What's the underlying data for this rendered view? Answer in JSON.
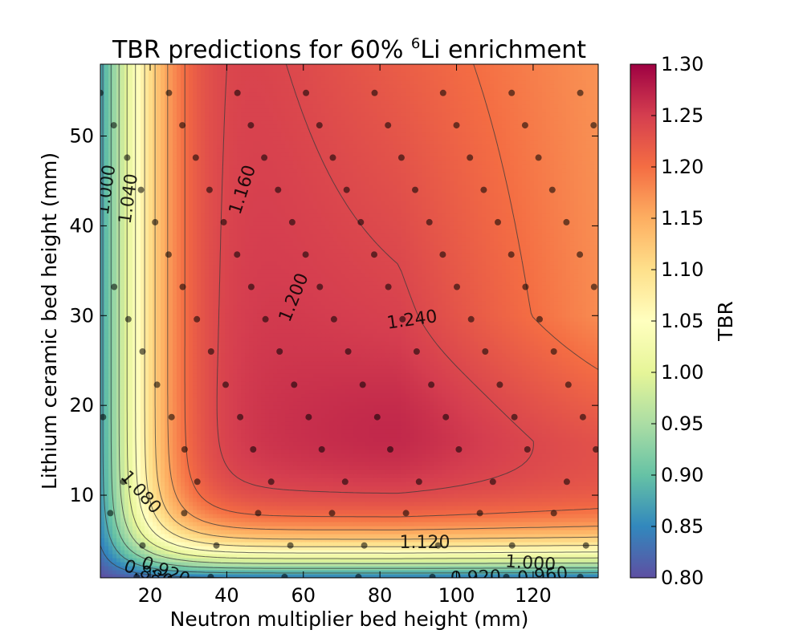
{
  "chart_data": {
    "type": "heatmap",
    "title": "TBR predictions for 60% ⁶Li enrichment",
    "title_main": "TBR predictions for 60% ",
    "title_sup": "6",
    "title_tail": "Li enrichment",
    "xlabel": "Neutron multiplier bed height (mm)",
    "ylabel": "Lithium ceramic bed height (mm)",
    "xlim": [
      7,
      137
    ],
    "ylim": [
      0.8,
      58
    ],
    "xticks": [
      20,
      40,
      60,
      80,
      100,
      120
    ],
    "xtick_labels": [
      "20",
      "40",
      "60",
      "80",
      "100",
      "120"
    ],
    "yticks": [
      10,
      20,
      30,
      40,
      50
    ],
    "ytick_labels": [
      "10",
      "20",
      "30",
      "40",
      "50"
    ],
    "colorbar": {
      "label": "TBR",
      "colormap": "Spectral_r",
      "range": [
        0.8,
        1.3
      ],
      "ticks": [
        0.8,
        0.85,
        0.9,
        0.95,
        1.0,
        1.05,
        1.1,
        1.15,
        1.2,
        1.25,
        1.3
      ],
      "tick_labels": [
        "0.80",
        "0.85",
        "0.90",
        "0.95",
        "1.00",
        "1.05",
        "1.10",
        "1.15",
        "1.20",
        "1.25",
        "1.30"
      ]
    },
    "contour_levels": [
      0.84,
      0.88,
      0.92,
      0.96,
      1.0,
      1.04,
      1.08,
      1.12,
      1.16,
      1.2,
      1.24
    ],
    "contour_labels": [
      {
        "text": "1.000",
        "x": 8.6,
        "y": 44,
        "rotation": -82
      },
      {
        "text": "1.040",
        "x": 14.4,
        "y": 43,
        "rotation": -82
      },
      {
        "text": "1.160",
        "x": 44.2,
        "y": 44,
        "rotation": -72
      },
      {
        "text": "1.200",
        "x": 57.6,
        "y": 32,
        "rotation": -68
      },
      {
        "text": "1.240",
        "x": 88.4,
        "y": 29.5,
        "rotation": -8
      },
      {
        "text": "1.080",
        "x": 17.5,
        "y": 10.3,
        "rotation": 48
      },
      {
        "text": "1.120",
        "x": 91.7,
        "y": 4.7,
        "rotation": 0
      },
      {
        "text": "1.000",
        "x": 119.3,
        "y": 2.4,
        "rotation": 4
      },
      {
        "text": "0.960",
        "x": 122.5,
        "y": 1.0,
        "rotation": -6
      },
      {
        "text": "0.920",
        "x": 105.0,
        "y": 0.8,
        "rotation": -2
      },
      {
        "text": "0.920",
        "x": 24.0,
        "y": 1.5,
        "rotation": 22
      },
      {
        "text": "0.880",
        "x": 19.5,
        "y": 1.2,
        "rotation": 20
      }
    ],
    "sample_points": {
      "rows_y": [
        0.9,
        4.4,
        8.0,
        11.5,
        15.1,
        18.7,
        22.3,
        26.0,
        29.6,
        33.2,
        36.8,
        40.4,
        44.0,
        47.6,
        51.2,
        54.8
      ],
      "rows_x": [
        [
          16.5,
          35.8,
          55.1,
          74.4,
          93.7,
          113.0,
          132.3
        ],
        [
          18.0,
          37.3,
          56.6,
          75.9,
          95.2,
          114.5,
          133.8
        ],
        [
          9.6,
          28.9,
          48.2,
          67.5,
          86.8,
          106.1,
          125.4
        ],
        [
          13.0,
          32.3,
          51.6,
          70.9,
          90.2,
          109.5,
          128.8
        ],
        [
          29.0,
          46.9,
          64.8,
          82.7,
          100.6,
          118.5,
          136.4
        ],
        [
          7.7,
          25.6,
          43.5,
          61.4,
          79.3,
          97.2,
          115.1,
          133.0
        ],
        [
          21.8,
          39.7,
          57.6,
          75.5,
          93.4,
          111.3,
          129.2
        ],
        [
          18.0,
          35.9,
          53.8,
          71.7,
          89.6,
          107.5,
          125.4
        ],
        [
          14.3,
          32.2,
          50.1,
          68.0,
          85.9,
          103.8,
          121.7
        ],
        [
          10.6,
          28.5,
          46.4,
          64.3,
          82.2,
          100.1,
          118.0,
          135.9
        ],
        [
          24.8,
          42.7,
          60.6,
          78.5,
          96.4,
          114.3,
          132.2
        ],
        [
          21.3,
          39.2,
          57.1,
          75.0,
          92.9,
          110.8,
          128.7
        ],
        [
          17.6,
          35.5,
          53.4,
          71.3,
          89.2,
          107.1,
          125.0
        ],
        [
          14.0,
          31.9,
          49.8,
          67.7,
          85.6,
          103.5,
          121.4
        ],
        [
          10.5,
          28.4,
          46.3,
          64.2,
          82.1,
          100.0,
          117.9,
          135.8
        ],
        [
          7.0,
          24.9,
          42.8,
          60.7,
          78.6,
          96.5,
          114.4,
          132.3
        ]
      ]
    }
  }
}
